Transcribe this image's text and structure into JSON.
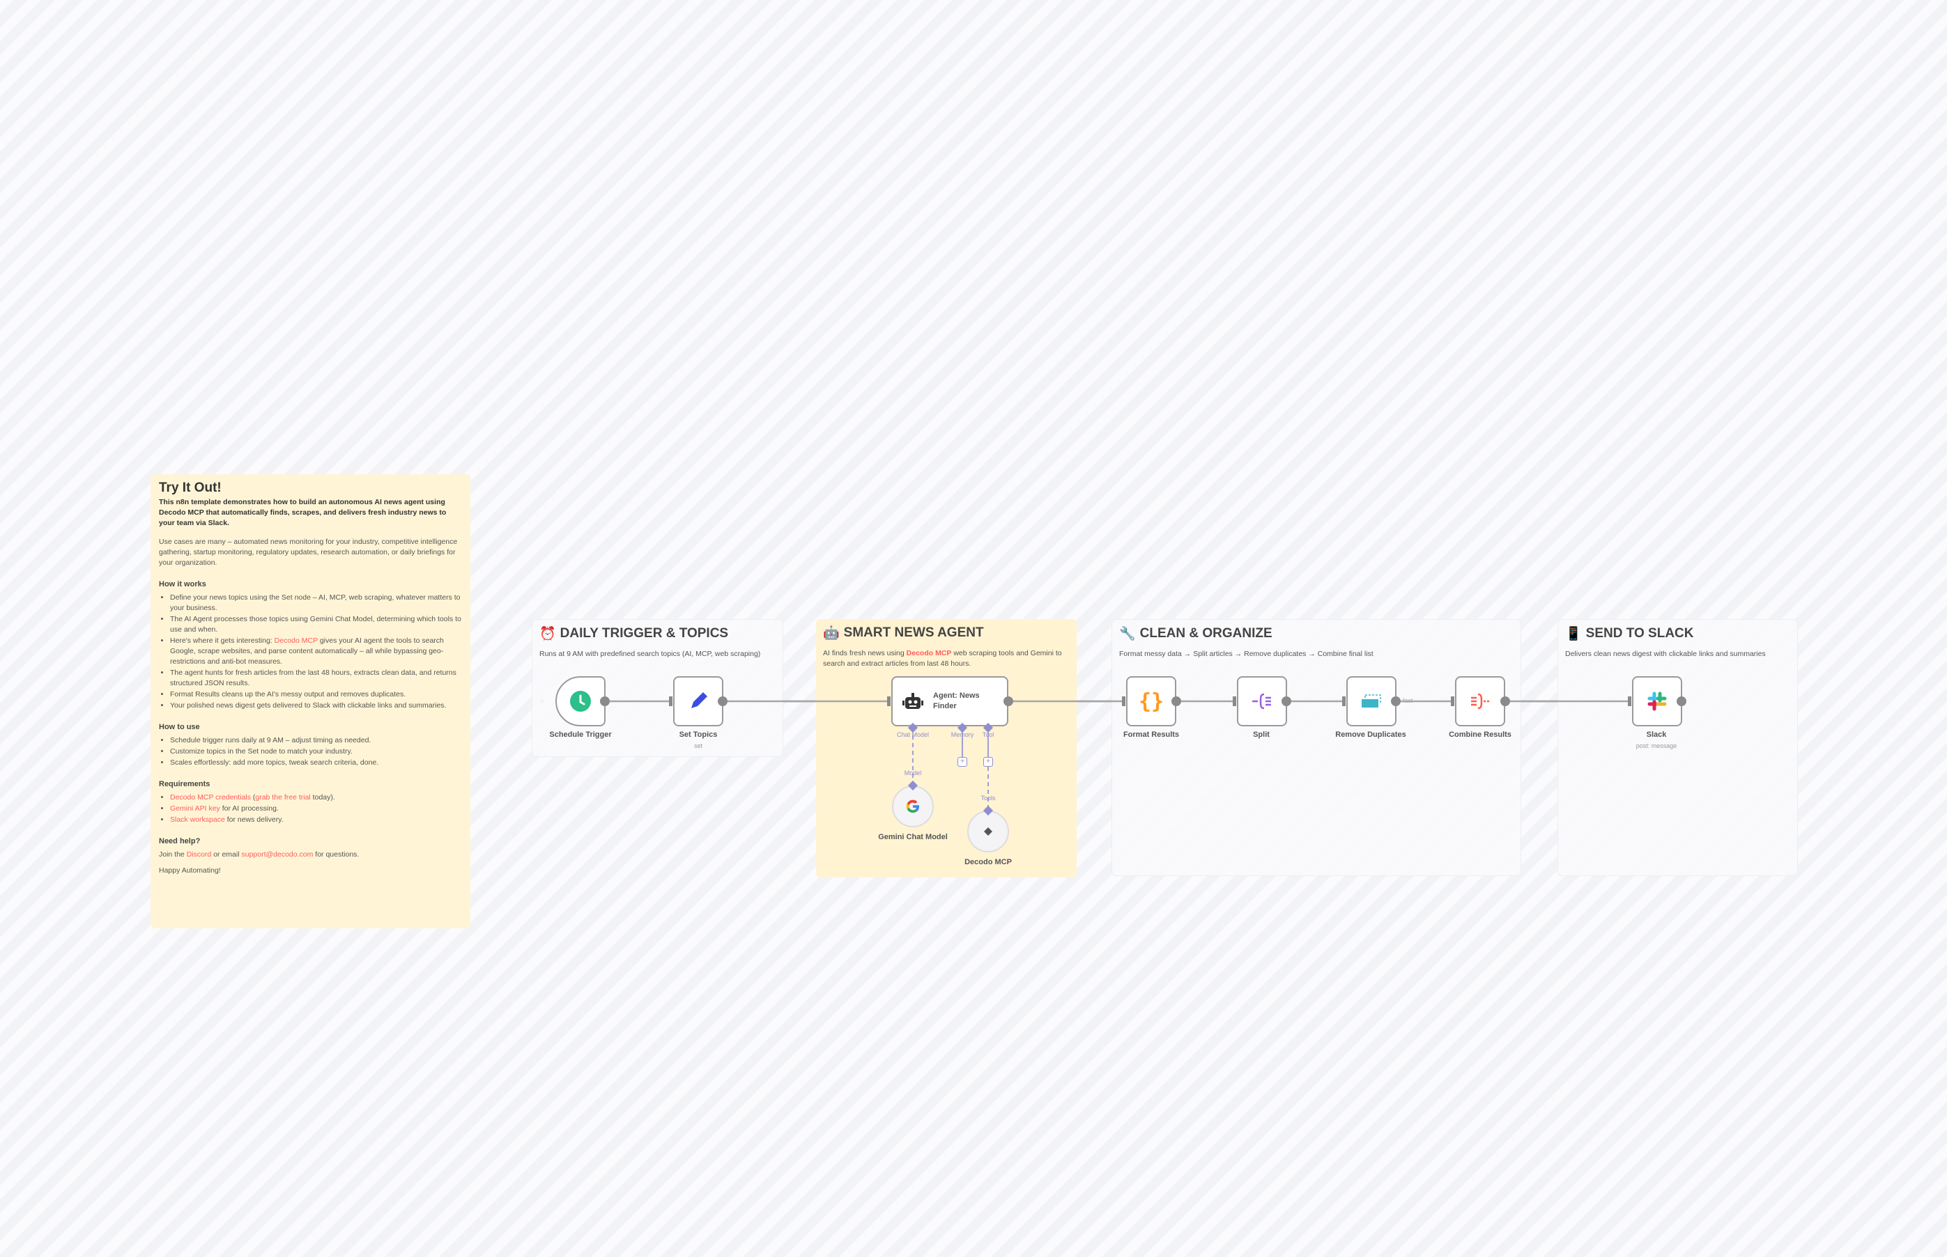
{
  "sticky": {
    "title": "Try It Out!",
    "intro": "This n8n template demonstrates how to build an autonomous AI news agent using Decodo MCP that automatically finds, scrapes, and delivers fresh industry news to your team via Slack.",
    "use_cases": "Use cases are many – automated news monitoring for your industry, competitive intelligence gathering, startup monitoring, regulatory updates, research automation, or daily briefings for your organization.",
    "how_it_works_heading": "How it works",
    "how_it_works": [
      "Define your news topics using the Set node – AI, MCP, web scraping, whatever matters to your business.",
      "The AI Agent processes those topics using Gemini Chat Model, determining which tools to use and when.",
      "gives your AI agent the tools to search Google, scrape websites, and parse content automatically – all while bypassing geo-restrictions and anti-bot measures.",
      "The agent hunts for fresh articles from the last 48 hours, extracts clean data, and returns structured JSON results.",
      "Format Results cleans up the AI's messy output and removes duplicates.",
      "Your polished news digest gets delivered to Slack with clickable links and summaries."
    ],
    "how_it_works_3_prefix": "Here's where it gets interesting: ",
    "how_it_works_3_link": "Decodo MCP",
    "how_to_use_heading": "How to use",
    "how_to_use": [
      "Schedule trigger runs daily at 9 AM – adjust timing as needed.",
      "Customize topics in the Set node to match your industry.",
      "Scales effortlessly: add more topics, tweak search criteria, done."
    ],
    "requirements_heading": "Requirements",
    "req1_link": "Decodo MCP credentials",
    "req1_mid": " (",
    "req1_link2": "grab the free trial",
    "req1_end": " today).",
    "req2_link": "Gemini API key",
    "req2_end": " for AI processing.",
    "req3_link": "Slack workspace",
    "req3_end": " for news delivery.",
    "help_heading": "Need help?",
    "help_prefix": "Join the ",
    "help_link1": "Discord",
    "help_mid": " or email ",
    "help_link2": "support@decodo.com",
    "help_end": " for questions.",
    "signoff": "Happy Automating!"
  },
  "sections": [
    {
      "icon": "⏰",
      "title": "DAILY TRIGGER & TOPICS",
      "desc": "Runs at 9 AM with predefined search topics (AI, MCP, web scraping)"
    },
    {
      "icon": "🤖",
      "title": "SMART NEWS AGENT",
      "desc_prefix": "AI finds fresh news using ",
      "desc_link": "Decodo MCP",
      "desc_suffix": " web scraping tools and Gemini to search and extract articles from last 48 hours."
    },
    {
      "icon": "🔧",
      "title": "CLEAN & ORGANIZE",
      "desc": "Format messy data → Split articles → Remove duplicates → Combine final list"
    },
    {
      "icon": "📱",
      "title": "SEND TO SLACK",
      "desc": "Delivers clean news digest with clickable links and summaries"
    }
  ],
  "nodes": {
    "schedule": {
      "label": "Schedule Trigger"
    },
    "set_topics": {
      "label": "Set Topics",
      "sub": "set"
    },
    "agent": {
      "label": "Agent: News Finder",
      "ports": {
        "chat_model": "Chat Model",
        "memory": "Memory",
        "tool": "Tool"
      }
    },
    "gemini": {
      "label": "Gemini Chat Model",
      "port": "Model"
    },
    "decodo": {
      "label": "Decodo MCP",
      "port": "Tools"
    },
    "format": {
      "label": "Format Results"
    },
    "split": {
      "label": "Split"
    },
    "dedupe": {
      "label": "Remove Duplicates",
      "out_label": "fact"
    },
    "combine": {
      "label": "Combine Results"
    },
    "slack": {
      "label": "Slack",
      "sub": "post: message"
    }
  },
  "colors": {
    "link": "#ff5b5b",
    "sticky_bg": "#fff5d6",
    "port": "#8f8fd0",
    "schedule": "#2bbf8a",
    "set": "#3b4de0",
    "format": "#ff9922",
    "split": "#9b5de5",
    "dedupe": "#3bb5c7",
    "combine": "#ff5b4d"
  }
}
